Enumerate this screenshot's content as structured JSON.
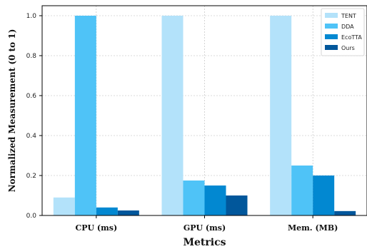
{
  "chart_data": {
    "type": "bar",
    "xlabel": "Metrics",
    "ylabel": "Normalized Measurement (0 to 1)",
    "categories": [
      "CPU (ms)",
      "GPU (ms)",
      "Mem. (MB)"
    ],
    "series": [
      {
        "name": "TENT",
        "color": "#b3e2fa",
        "values": [
          0.09,
          1.0,
          1.0
        ]
      },
      {
        "name": "DDA",
        "color": "#4fc3f7",
        "values": [
          1.0,
          0.175,
          0.25
        ]
      },
      {
        "name": "EcoTTA",
        "color": "#0288d1",
        "values": [
          0.04,
          0.15,
          0.2
        ]
      },
      {
        "name": "Ours",
        "color": "#01579b",
        "values": [
          0.025,
          0.1,
          0.022
        ]
      }
    ],
    "ylim": [
      0,
      1.05
    ],
    "yticks": [
      "0.0",
      "0.2",
      "0.4",
      "0.6",
      "0.8",
      "1.0"
    ],
    "grid": true,
    "legend_position": "top-right"
  }
}
